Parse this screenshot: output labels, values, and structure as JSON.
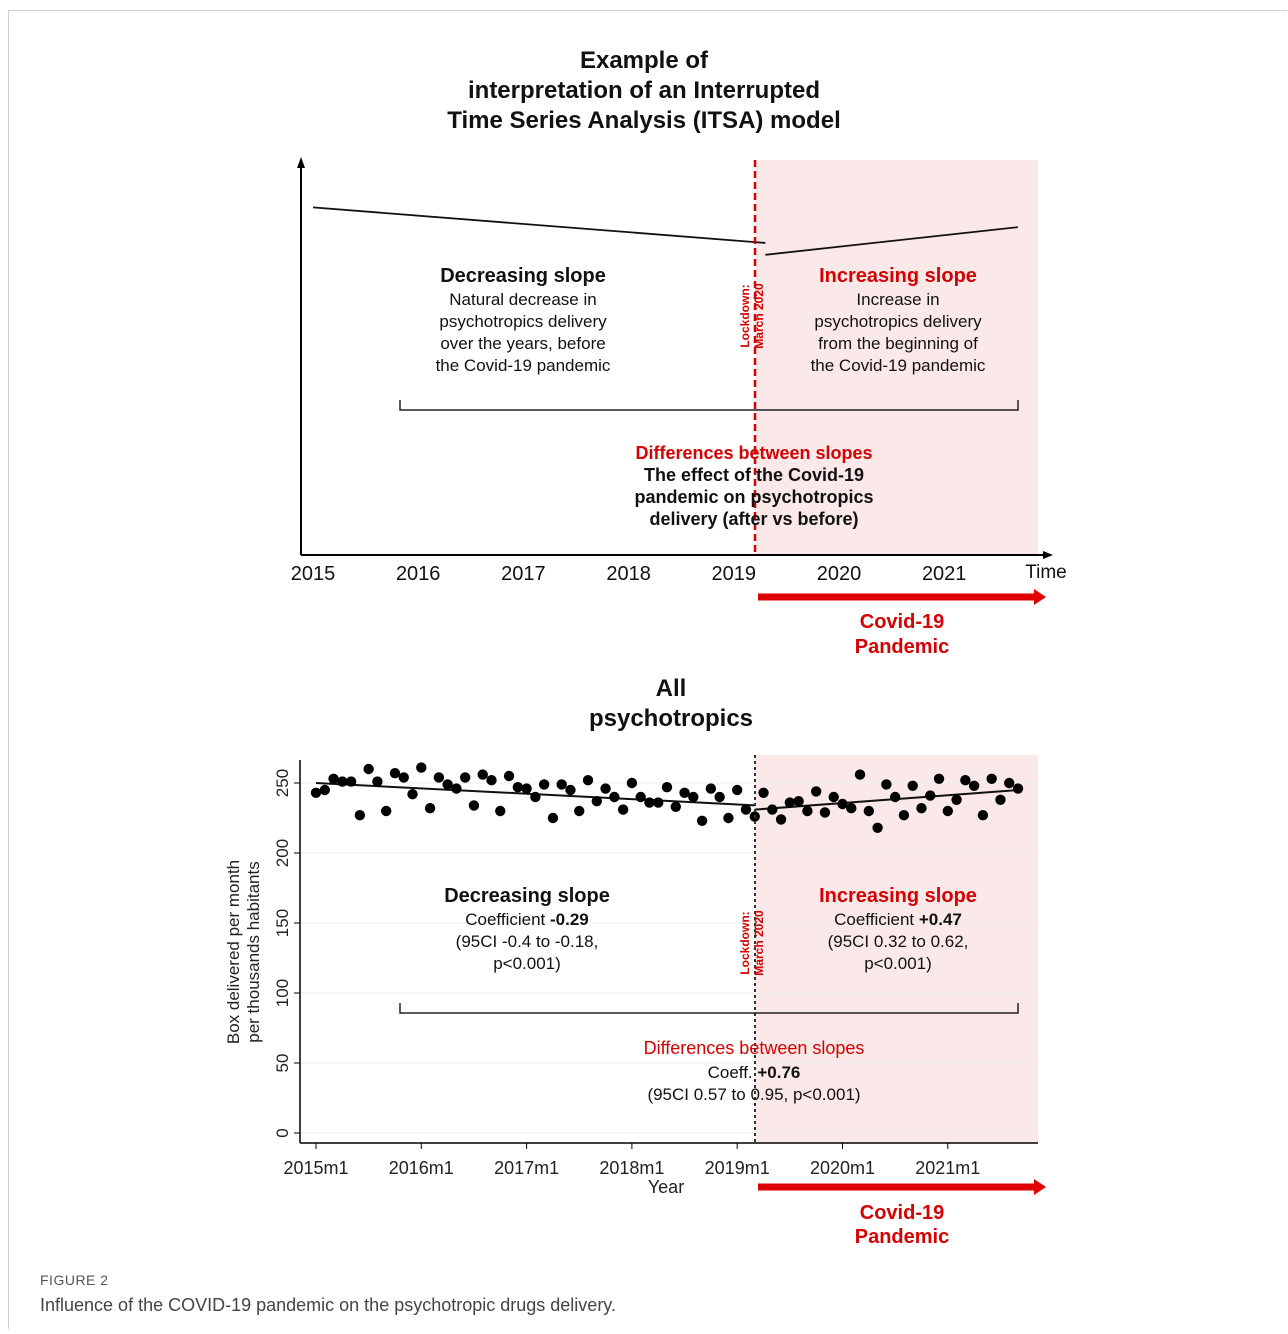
{
  "colors": {
    "accent_red": "#d40000",
    "shade": "#fbe9e9",
    "line": "#111111",
    "axis": "#000000"
  },
  "top_panel": {
    "title": [
      "Example of",
      "interpretation of an Interrupted",
      "Time Series Analysis (ITSA) model"
    ],
    "x_ticks": [
      "2015",
      "2016",
      "2017",
      "2018",
      "2019",
      "2020",
      "2021"
    ],
    "x_axis_label": "Time",
    "lockdown_label": [
      "Lockdown:",
      "March 2020"
    ],
    "left_heading": "Decreasing slope",
    "left_body": [
      "Natural decrease in",
      "psychotropics delivery",
      "over the years, before",
      "the Covid-19 pandemic"
    ],
    "right_heading": "Increasing slope",
    "right_body": [
      "Increase in",
      "psychotropics delivery",
      "from the beginning of",
      "the Covid-19 pandemic"
    ],
    "diff_heading": "Differences between slopes",
    "diff_body": [
      "The effect of the Covid-19",
      "pandemic on psychotropics",
      "delivery (after vs before)"
    ],
    "pandemic_label": [
      "Covid-19",
      "Pandemic"
    ]
  },
  "bottom_panel": {
    "title": [
      "All",
      "psychotropics"
    ],
    "lockdown_label": [
      "Lockdown:",
      "March 2020"
    ],
    "left_heading": "Decreasing slope",
    "left_coef_prefix": "Coefficient ",
    "left_coef_value": "-0.29",
    "left_ci": [
      "(95CI -0.4 to -0.18,",
      "p<0.001)"
    ],
    "right_heading": "Increasing slope",
    "right_coef_prefix": "Coefficient ",
    "right_coef_value": "+0.47",
    "right_ci": [
      "(95CI 0.32 to 0.62,",
      "p<0.001)"
    ],
    "diff_heading": "Differences between slopes",
    "diff_coef_prefix": "Coeff. ",
    "diff_coef_value": "+0.76",
    "diff_ci": "(95CI 0.57 to 0.95, p<0.001)",
    "pandemic_label": [
      "Covid-19",
      "Pandemic"
    ]
  },
  "caption": {
    "label": "FIGURE 2",
    "text": "Influence of the COVID-19 pandemic on the psychotropic drugs delivery."
  },
  "chart_data": [
    {
      "type": "line",
      "title": "Example of interpretation of an Interrupted Time Series Analysis (ITSA) model",
      "xlabel": "Time",
      "ylabel": "",
      "x_ticks": [
        "2015",
        "2016",
        "2017",
        "2018",
        "2019",
        "2020",
        "2021"
      ],
      "interruption": "March 2020",
      "segments": [
        {
          "x": [
            2015.0,
            2019.3
          ],
          "y": [
            0.88,
            0.79
          ]
        },
        {
          "x": [
            2019.3,
            2021.7
          ],
          "y": [
            0.76,
            0.83
          ]
        }
      ]
    },
    {
      "type": "scatter",
      "title": "All psychotropics",
      "xlabel": "Year",
      "ylabel": "Box delivered per month per thousands habitants",
      "x_ticks": [
        "2015m1",
        "2016m1",
        "2017m1",
        "2018m1",
        "2019m1",
        "2020m1",
        "2021m1"
      ],
      "y_ticks": [
        0,
        50,
        100,
        150,
        200,
        250
      ],
      "ylim": [
        0,
        265
      ],
      "interruption": "March 2020",
      "x_start": "2015m1",
      "values": [
        243,
        245,
        253,
        251,
        251,
        227,
        260,
        251,
        230,
        257,
        254,
        242,
        261,
        232,
        254,
        249,
        246,
        254,
        234,
        256,
        252,
        230,
        255,
        247,
        246,
        240,
        249,
        225,
        249,
        245,
        230,
        252,
        237,
        246,
        240,
        231,
        250,
        240,
        236,
        236,
        247,
        233,
        243,
        240,
        223,
        246,
        240,
        225,
        245,
        231,
        226,
        243,
        231,
        224,
        236,
        237,
        230,
        244,
        229,
        240,
        235,
        232,
        256,
        230,
        218,
        249,
        240,
        227,
        248,
        232,
        241,
        253,
        230,
        238,
        252,
        248,
        227,
        253,
        238,
        250,
        246
      ],
      "fit_pre": {
        "start": 250,
        "end": 234
      },
      "fit_post": {
        "start": 231,
        "end": 245
      }
    }
  ]
}
